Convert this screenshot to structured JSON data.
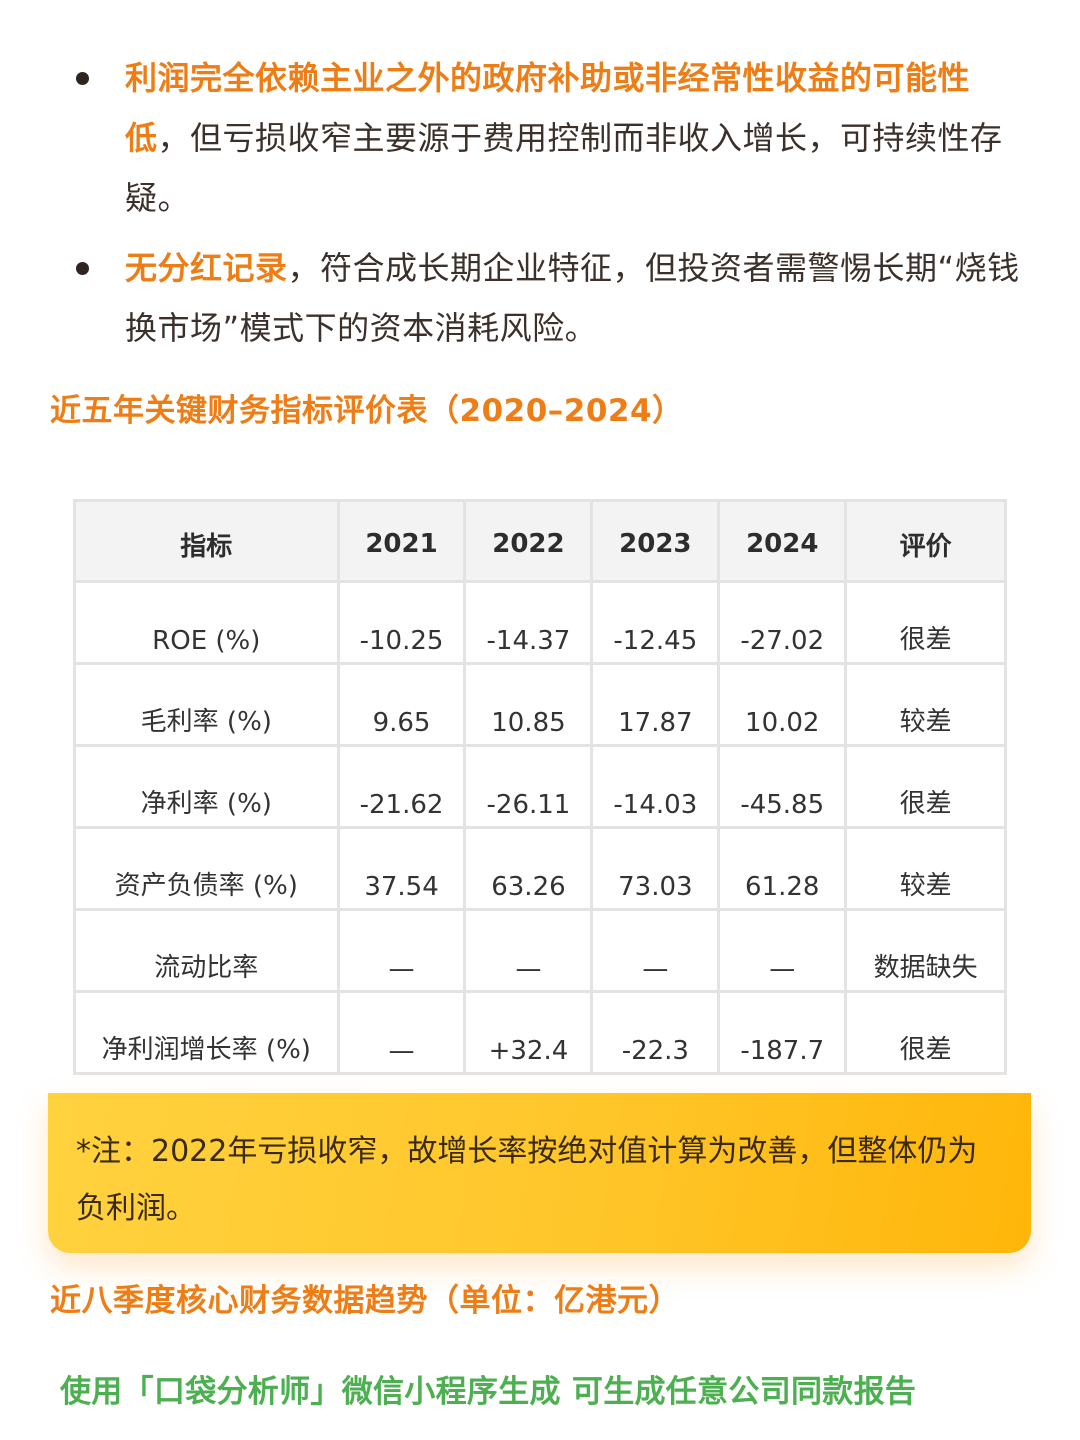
{
  "bullets": [
    {
      "highlight": "利润完全依赖主业之外的政府补助或非经常性收益的可能性低",
      "rest": "，但亏损收窄主要源于费用控制而非收入增长，可持续性存疑。"
    },
    {
      "highlight": "无分红记录",
      "rest": "，符合成长期企业特征，但投资者需警惕长期“烧钱换市场”模式下的资本消耗风险。"
    }
  ],
  "section1_title": "近五年关键财务指标评价表（2020–2024）",
  "table": {
    "headers": [
      "指标",
      "2021",
      "2022",
      "2023",
      "2024",
      "评价"
    ],
    "rows": [
      [
        "ROE (%)",
        "-10.25",
        "-14.37",
        "-12.45",
        "-27.02",
        "很差"
      ],
      [
        "毛利率 (%)",
        "9.65",
        "10.85",
        "17.87",
        "10.02",
        "较差"
      ],
      [
        "净利率 (%)",
        "-21.62",
        "-26.11",
        "-14.03",
        "-45.85",
        "很差"
      ],
      [
        "资产负债率 (%)",
        "37.54",
        "63.26",
        "73.03",
        "61.28",
        "较差"
      ],
      [
        "流动比率",
        "—",
        "—",
        "—",
        "—",
        "数据缺失"
      ],
      [
        "净利润增长率 (%)",
        "—",
        "+32.4",
        "-22.3",
        "-187.7",
        "很差"
      ]
    ]
  },
  "note": "*注：2022年亏损收窄，故增长率按绝对值计算为改善，但整体仍为负利润。",
  "section2_title": "近八季度核心财务数据趋势（单位：亿港元）",
  "footer": "使用「口袋分析师」微信小程序生成 可生成任意公司同款报告",
  "colors": {
    "accent_orange": "#ef7d16",
    "note_yellow": "#ffc62a",
    "footer_green": "#4caf50"
  }
}
